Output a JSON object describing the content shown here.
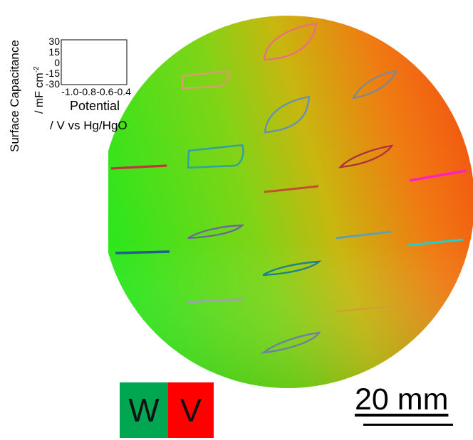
{
  "inset_plot": {
    "ylabel_line1": "Surface Capacitance",
    "ylabel_line2": "/ mF cm",
    "ylabel_sup": "-2",
    "xlabel_line1": "Potential",
    "xlabel_line2": "/ V vs Hg/HgO",
    "yticks": [
      "30",
      "15",
      "0",
      "-15",
      "-30"
    ],
    "xticks": [
      "-1.0",
      "-0.8",
      "-0.6",
      "-0.4"
    ],
    "xlim": [
      -1.1,
      -0.35
    ],
    "ylim": [
      -30,
      30
    ]
  },
  "legend": {
    "w_label": "W",
    "v_label": "V",
    "w_color": "#00a651",
    "v_color": "#ff0000"
  },
  "scale": {
    "label": "20 mm"
  },
  "colors": {
    "wafer_green": "#33dd22",
    "wafer_mid": "#b8c410",
    "wafer_orange": "#f05a10"
  },
  "cv_curves": [
    {
      "id": "cv-1",
      "color": "#e87080",
      "shape": "wide-leaf"
    },
    {
      "id": "cv-2",
      "color": "#d4a070",
      "shape": "flat-box"
    },
    {
      "id": "cv-3",
      "color": "#808890",
      "shape": "thin-leaf"
    },
    {
      "id": "cv-4",
      "color": "#6890b0",
      "shape": "wide-leaf"
    },
    {
      "id": "cv-5",
      "color": "#c83040",
      "shape": "line"
    },
    {
      "id": "cv-6",
      "color": "#30a0a0",
      "shape": "flat-box"
    },
    {
      "id": "cv-7",
      "color": "#b03040",
      "shape": "thin-leaf"
    },
    {
      "id": "cv-8",
      "color": "#c05030",
      "shape": "line"
    },
    {
      "id": "cv-9",
      "color": "#ff20c0",
      "shape": "line"
    },
    {
      "id": "cv-10",
      "color": "#6a6a9a",
      "shape": "thin-leaf"
    },
    {
      "id": "cv-11",
      "color": "#20608a",
      "shape": "line"
    },
    {
      "id": "cv-12",
      "color": "#60a0b0",
      "shape": "line"
    },
    {
      "id": "cv-13",
      "color": "#20d0d0",
      "shape": "line"
    },
    {
      "id": "cv-14",
      "color": "#20808a",
      "shape": "thin-leaf"
    },
    {
      "id": "cv-15",
      "color": "#a0a0b0",
      "shape": "line"
    },
    {
      "id": "cv-16",
      "color": "#d0a030",
      "shape": "line"
    },
    {
      "id": "cv-17",
      "color": "#7080a0",
      "shape": "thin-leaf"
    }
  ]
}
